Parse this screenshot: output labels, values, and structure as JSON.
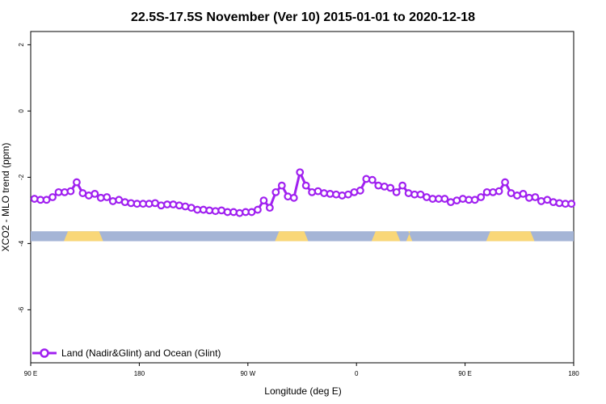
{
  "chart_data": {
    "type": "line",
    "title": "22.5S-17.5S November (Ver 10)   2015-01-01 to 2020-12-18",
    "xlabel": "Longitude (deg E)",
    "ylabel": "XCO2 - MLO trend (ppm)",
    "xlim": [
      90,
      450
    ],
    "ylim": [
      -7.6,
      2.4
    ],
    "x_ticks": [
      {
        "value": 90,
        "label": "90 E"
      },
      {
        "value": 162,
        "label": "180"
      },
      {
        "value": 234,
        "label": "90 W"
      },
      {
        "value": 306,
        "label": "0"
      },
      {
        "value": 378,
        "label": "90 E"
      },
      {
        "value": 450,
        "label": "180"
      }
    ],
    "y_ticks": [
      {
        "value": 2,
        "label": "2"
      },
      {
        "value": 0,
        "label": "0"
      },
      {
        "value": -2,
        "label": "-2"
      },
      {
        "value": -4,
        "label": "-4"
      },
      {
        "value": -6,
        "label": "-6"
      }
    ],
    "grid": false,
    "legend_position": "bottom-left",
    "series": [
      {
        "name": "Land (Nadir&Glint) and Ocean (Glint)",
        "color": "#a020f0",
        "x": [
          92.5,
          96.5,
          100.5,
          104.5,
          108.5,
          112.5,
          116.5,
          120.5,
          124.5,
          128.5,
          132.5,
          136.5,
          140.5,
          144.5,
          148.5,
          152.5,
          156.5,
          160.5,
          164.5,
          168.5,
          172.5,
          176.5,
          180.5,
          184.5,
          188.5,
          192.5,
          196.5,
          200.5,
          204.5,
          208.5,
          212.5,
          216.5,
          220.5,
          224.5,
          228.5,
          232.5,
          236.5,
          240.5,
          244.5,
          248.5,
          252.5,
          256.5,
          260.5,
          264.5,
          268.5,
          272.5,
          276.5,
          280.5,
          284.5,
          288.5,
          292.5,
          296.5,
          300.5,
          304.5,
          308.5,
          312.5,
          316.5,
          320.5,
          324.5,
          328.5,
          332.5,
          336.5,
          340.5,
          344.5,
          348.5,
          352.5,
          356.5,
          360.5,
          364.5,
          368.5,
          372.5,
          376.5,
          380.5,
          384.5,
          388.5,
          392.5,
          396.5,
          400.5,
          404.5,
          408.5,
          412.5,
          416.5,
          420.5,
          424.5,
          428.5,
          432.5,
          436.5,
          440.5,
          444.5,
          448.5
        ],
        "y": [
          -2.65,
          -2.68,
          -2.68,
          -2.6,
          -2.45,
          -2.45,
          -2.42,
          -2.15,
          -2.48,
          -2.55,
          -2.5,
          -2.62,
          -2.6,
          -2.72,
          -2.68,
          -2.75,
          -2.78,
          -2.8,
          -2.8,
          -2.8,
          -2.78,
          -2.85,
          -2.82,
          -2.82,
          -2.85,
          -2.88,
          -2.92,
          -2.98,
          -2.98,
          -3.0,
          -3.02,
          -3.0,
          -3.05,
          -3.05,
          -3.08,
          -3.05,
          -3.05,
          -2.98,
          -2.7,
          -2.92,
          -2.45,
          -2.25,
          -2.58,
          -2.62,
          -1.85,
          -2.25,
          -2.45,
          -2.42,
          -2.48,
          -2.5,
          -2.52,
          -2.55,
          -2.52,
          -2.45,
          -2.4,
          -2.05,
          -2.08,
          -2.25,
          -2.28,
          -2.32,
          -2.45,
          -2.25,
          -2.48,
          -2.52,
          -2.52,
          -2.6,
          -2.65,
          -2.65,
          -2.65,
          -2.75,
          -2.7,
          -2.65,
          -2.68,
          -2.68,
          -2.6,
          -2.45,
          -2.45,
          -2.42,
          -2.15,
          -2.48,
          -2.55,
          -2.5,
          -2.62,
          -2.6,
          -2.72,
          -2.68,
          -2.75,
          -2.78,
          -2.8,
          -2.8
        ]
      }
    ],
    "surface_band": {
      "ocean_color": "#a5b5d6",
      "land_color": "#f9d778",
      "land_segments": [
        [
          112,
          138
        ],
        [
          252,
          274
        ],
        [
          316,
          335
        ],
        [
          339,
          343
        ],
        [
          392,
          424
        ]
      ]
    }
  }
}
